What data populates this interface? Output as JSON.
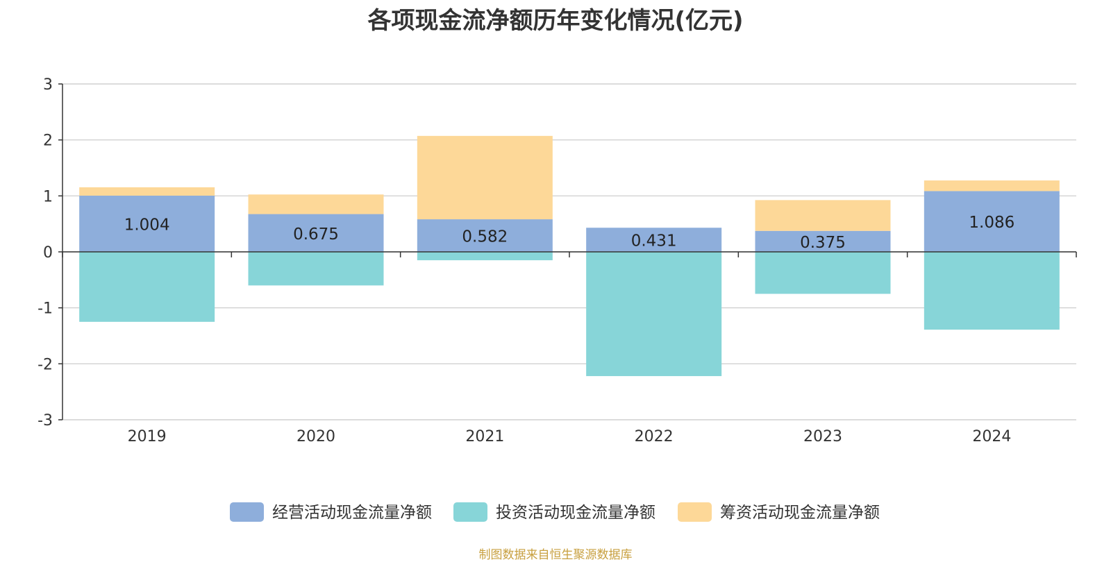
{
  "chart_data": {
    "type": "bar",
    "stacked": true,
    "title": "各项现金流净额历年变化情况(亿元)",
    "categories": [
      "2019",
      "2020",
      "2021",
      "2022",
      "2023",
      "2024"
    ],
    "ylim": [
      -3,
      3
    ],
    "yticks": [
      "3",
      "2",
      "1",
      "0",
      "-1",
      "-2",
      "-3"
    ],
    "grid": true,
    "legend_position": "bottom",
    "series": [
      {
        "name": "经营活动现金流量净额",
        "color": "#8eaedb",
        "values": [
          1.004,
          0.675,
          0.582,
          0.431,
          0.375,
          1.086
        ],
        "labels": [
          "1.004",
          "0.675",
          "0.582",
          "0.431",
          "0.375",
          "1.086"
        ]
      },
      {
        "name": "投资活动现金流量净额",
        "color": "#87d5d8",
        "values": [
          -1.25,
          -0.6,
          -0.15,
          -2.22,
          -0.75,
          -1.39
        ]
      },
      {
        "name": "筹资活动现金流量净额",
        "color": "#fdd898",
        "values": [
          0.15,
          0.35,
          1.49,
          0,
          0.55,
          0.19
        ]
      }
    ]
  },
  "footer": {
    "source": "制图数据来自恒生聚源数据库"
  }
}
